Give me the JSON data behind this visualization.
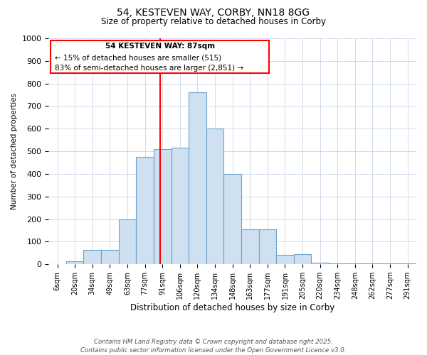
{
  "title": "54, KESTEVEN WAY, CORBY, NN18 8GG",
  "subtitle": "Size of property relative to detached houses in Corby",
  "xlabel": "Distribution of detached houses by size in Corby",
  "ylabel": "Number of detached properties",
  "categories": [
    "6sqm",
    "20sqm",
    "34sqm",
    "49sqm",
    "63sqm",
    "77sqm",
    "91sqm",
    "106sqm",
    "120sqm",
    "134sqm",
    "148sqm",
    "163sqm",
    "177sqm",
    "191sqm",
    "205sqm",
    "220sqm",
    "234sqm",
    "248sqm",
    "262sqm",
    "277sqm",
    "291sqm"
  ],
  "values": [
    0,
    12,
    62,
    62,
    200,
    475,
    510,
    515,
    760,
    600,
    400,
    155,
    155,
    42,
    45,
    8,
    5,
    5,
    5,
    5,
    5
  ],
  "bar_color": "#cfe0f0",
  "bar_edge_color": "#6aA4d0",
  "red_line_x": 5.85,
  "ylim": [
    0,
    1000
  ],
  "yticks": [
    0,
    100,
    200,
    300,
    400,
    500,
    600,
    700,
    800,
    900,
    1000
  ],
  "annotation_title": "54 KESTEVEN WAY: 87sqm",
  "annotation_line1": "← 15% of detached houses are smaller (515)",
  "annotation_line2": "83% of semi-detached houses are larger (2,851) →",
  "footer_line1": "Contains HM Land Registry data © Crown copyright and database right 2025.",
  "footer_line2": "Contains public sector information licensed under the Open Government Licence v3.0.",
  "background_color": "#ffffff",
  "grid_color": "#c8d4e8"
}
